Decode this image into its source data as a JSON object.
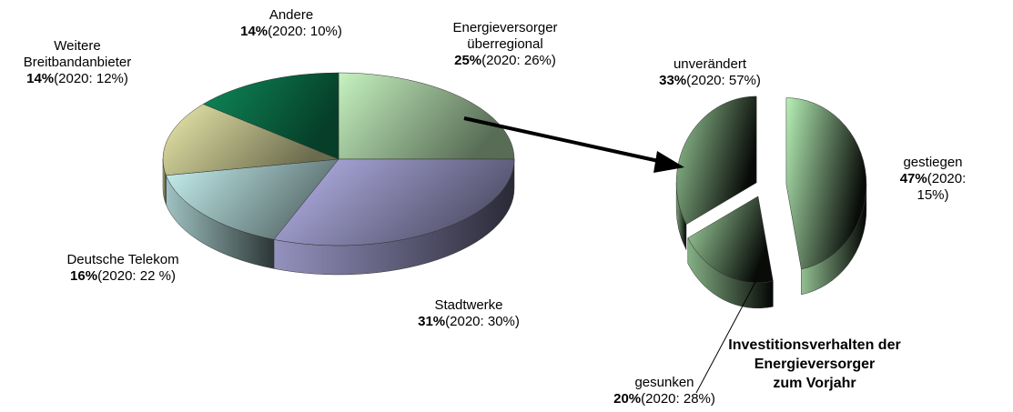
{
  "chart_data": [
    {
      "type": "pie",
      "categories": [
        "Energieversorger\nüberregional",
        "Stadtwerke",
        "Deutsche Telekom",
        "Weitere\nBreitbandanbieter",
        "Andere"
      ],
      "values": [
        25,
        31,
        16,
        14,
        14
      ],
      "value_labels": [
        "25%",
        "31%",
        "16%",
        "14%",
        "14%"
      ],
      "prev_labels": [
        "(2020: 26%)",
        "(2020: 30%)",
        "(2020: 22 %)",
        "(2020: 12%)",
        "(2020: 10%)"
      ],
      "colors": [
        "#c6f2c0",
        "#b9b6ee",
        "#c8f2f2",
        "#ecebac",
        "#0e8a5a"
      ]
    },
    {
      "type": "pie",
      "title": "Investitionsverhalten der Energieversorger\nzum Vorjahr",
      "categories": [
        "gestiegen",
        "gesunken",
        "unverändert"
      ],
      "values": [
        47,
        20,
        33
      ],
      "value_labels": [
        "47%",
        "20%",
        "33%"
      ],
      "prev_labels": [
        "(2020: 15%)",
        "(2020: 28%)",
        "(2020: 57%)"
      ],
      "colors": [
        "#b6f0b6",
        "#a6dca6",
        "#98cc98"
      ]
    }
  ]
}
